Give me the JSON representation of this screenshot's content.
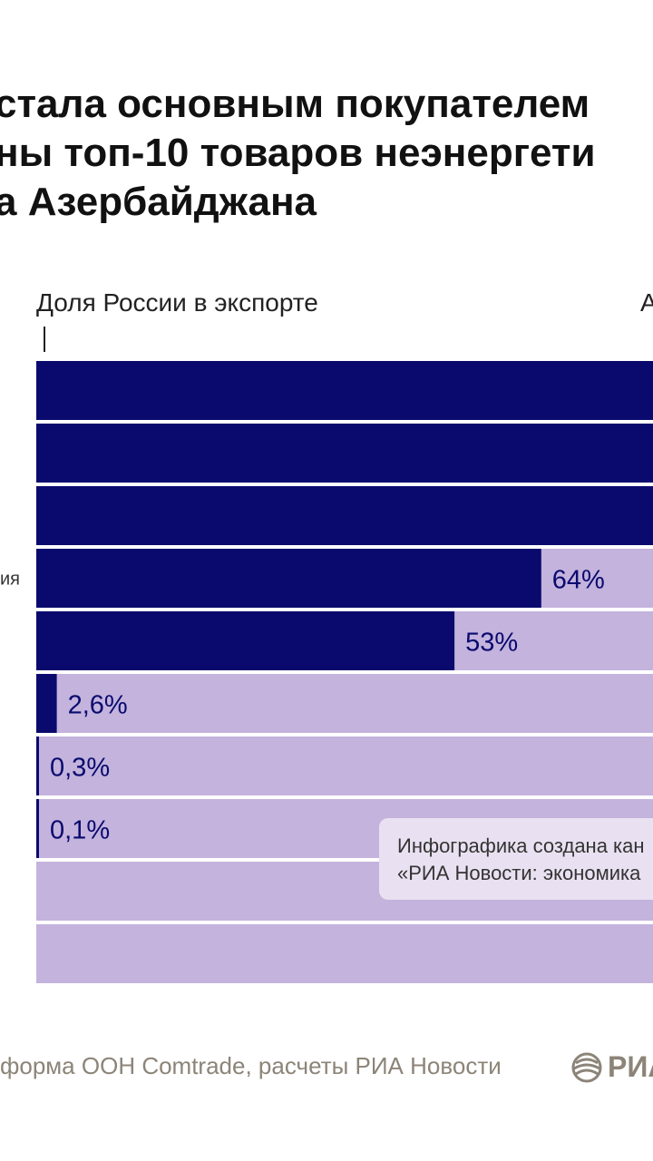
{
  "title": {
    "line1": "стала основным покупателем",
    "line2": "ны топ-10 товаров неэнергети",
    "line3": "а Азербайджана"
  },
  "legend": {
    "left": "Доля России в экспорте",
    "right": "А"
  },
  "chart_data": {
    "type": "bar",
    "orientation": "horizontal",
    "stacked_to_100": true,
    "xlim": [
      0,
      100
    ],
    "categories": [
      "",
      "",
      "",
      "",
      "",
      "",
      "",
      "",
      "",
      ""
    ],
    "row_labels": [
      "",
      "",
      "",
      "ия",
      "",
      "",
      "",
      "",
      "",
      ""
    ],
    "series": [
      {
        "values": [
          100,
          100,
          100,
          64,
          53,
          2.6,
          0.3,
          0.1,
          0,
          0
        ]
      }
    ],
    "data_labels": [
      "",
      "",
      "",
      "64%",
      "53%",
      "2,6%",
      "0,3%",
      "0,1%",
      "",
      ""
    ],
    "colors": {
      "russia": "#0a0a6e",
      "rest": "#c3b3dd",
      "label": "#0a0a6e"
    }
  },
  "note": {
    "line1": "Инфографика создана кан",
    "line2": "«РИА Новости: экономика"
  },
  "source": "форма ООН Comtrade, расчеты РИА Новости",
  "logo": {
    "icon": "ria-globe-icon",
    "text": "РИА"
  }
}
